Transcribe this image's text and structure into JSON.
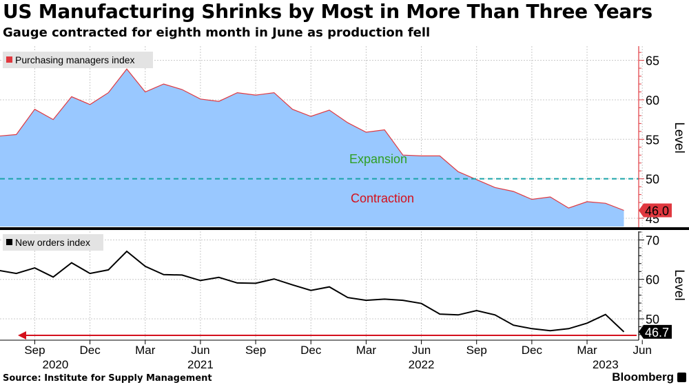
{
  "header": {
    "title": "US Manufacturing Shrinks by Most in More Than Three Years",
    "subtitle": "Gauge contracted for eighth month in June as production fell"
  },
  "footer": {
    "source": "Source: Institute for Supply Management",
    "brand": "Bloomberg"
  },
  "colors": {
    "pmi_fill": "#99c8ff",
    "pmi_line": "#e0383f",
    "reference_line": "#1aa3a8",
    "expansion_text": "#2e9e22",
    "contraction_text": "#d4101c",
    "orders_line": "#000000",
    "arrow": "#d4101c"
  },
  "chart_data": [
    {
      "type": "area",
      "legend": "Purchasing managers index",
      "legend_position": "top-left",
      "ylabel": "Level",
      "ylim": [
        45,
        66
      ],
      "yticks": [
        "45",
        "50",
        "55",
        "60",
        "65"
      ],
      "grid": true,
      "x": [
        "2020-07",
        "2020-08",
        "2020-09",
        "2020-10",
        "2020-11",
        "2020-12",
        "2021-01",
        "2021-02",
        "2021-03",
        "2021-04",
        "2021-05",
        "2021-06",
        "2021-07",
        "2021-08",
        "2021-09",
        "2021-10",
        "2021-11",
        "2021-12",
        "2022-01",
        "2022-02",
        "2022-03",
        "2022-04",
        "2022-05",
        "2022-06",
        "2022-07",
        "2022-08",
        "2022-09",
        "2022-10",
        "2022-11",
        "2022-12",
        "2023-01",
        "2023-02",
        "2023-03",
        "2023-04",
        "2023-05",
        "2023-06"
      ],
      "values": [
        55.4,
        55.6,
        58.8,
        57.5,
        60.4,
        59.4,
        60.9,
        63.9,
        61.0,
        62.0,
        61.3,
        60.1,
        59.8,
        60.9,
        60.6,
        60.9,
        58.8,
        57.9,
        58.7,
        57.1,
        55.9,
        56.2,
        53.0,
        52.9,
        52.9,
        50.9,
        49.9,
        48.9,
        48.4,
        47.4,
        47.7,
        46.3,
        47.1,
        46.9,
        46.0,
        46.0
      ],
      "last_value_label": "46.0",
      "reference_line": 50,
      "annotations": [
        "Expansion",
        "Contraction"
      ]
    },
    {
      "type": "line",
      "legend": "New orders index",
      "legend_position": "top-left",
      "ylabel": "Level",
      "ylim": [
        45,
        73
      ],
      "yticks": [
        "50",
        "60",
        "70"
      ],
      "grid": true,
      "x": [
        "2020-07",
        "2020-08",
        "2020-09",
        "2020-10",
        "2020-11",
        "2020-12",
        "2021-01",
        "2021-02",
        "2021-03",
        "2021-04",
        "2021-05",
        "2021-06",
        "2021-07",
        "2021-08",
        "2021-09",
        "2021-10",
        "2021-11",
        "2021-12",
        "2022-01",
        "2022-02",
        "2022-03",
        "2022-04",
        "2022-05",
        "2022-06",
        "2022-07",
        "2022-08",
        "2022-09",
        "2022-10",
        "2022-11",
        "2022-12",
        "2023-01",
        "2023-02",
        "2023-03",
        "2023-04",
        "2023-05",
        "2023-06"
      ],
      "values": [
        62.3,
        61.5,
        62.9,
        60.6,
        64.2,
        61.5,
        62.4,
        67.1,
        63.3,
        61.2,
        61.1,
        59.7,
        60.5,
        59.1,
        59.0,
        60.1,
        58.6,
        57.2,
        58.1,
        55.4,
        54.7,
        55.0,
        54.7,
        53.9,
        51.2,
        51.0,
        52.1,
        51.0,
        48.4,
        47.5,
        47.0,
        47.5,
        48.9,
        51.1,
        46.7,
        46.7
      ],
      "last_value_label": "46.7",
      "x_tick_labels": [
        "Sep",
        "Dec",
        "Mar",
        "Jun",
        "Sep",
        "Dec",
        "Mar",
        "Jun",
        "Sep",
        "Dec",
        "Mar",
        "Jun"
      ],
      "x_year_labels": [
        "2020",
        "2021",
        "2022",
        "2023"
      ]
    }
  ]
}
